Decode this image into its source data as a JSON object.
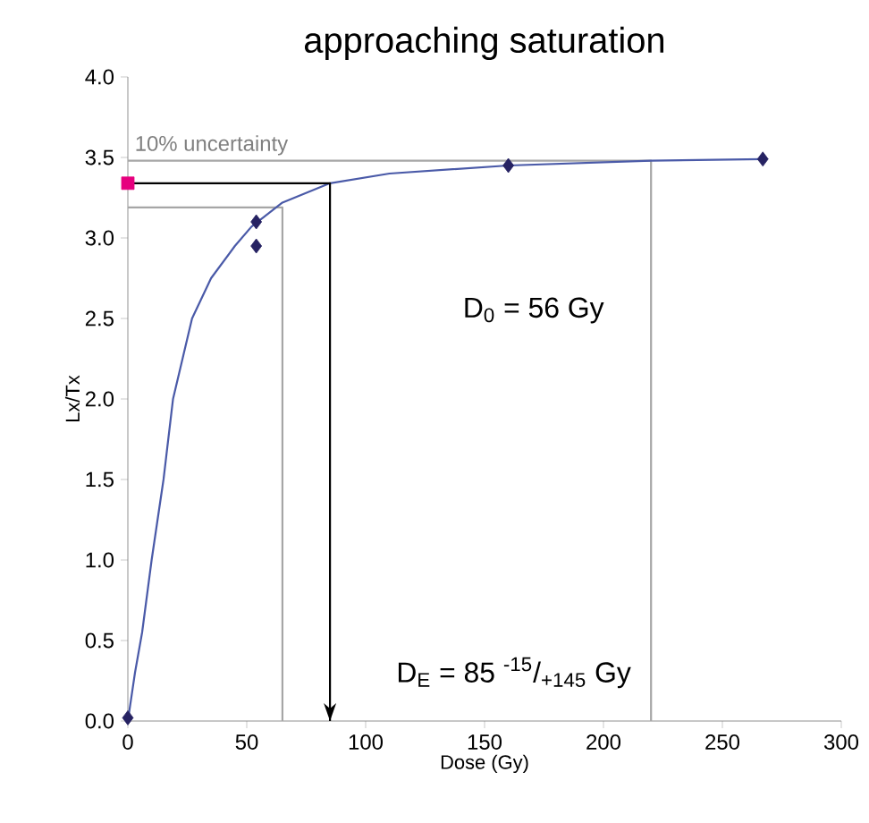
{
  "chart_data": {
    "type": "scatter",
    "title": "approaching saturation",
    "xlabel": "Dose (Gy)",
    "ylabel": "Lx/Tx",
    "xlim": [
      0,
      300
    ],
    "ylim": [
      0,
      4.0
    ],
    "xticks": [
      0,
      50,
      100,
      150,
      200,
      250,
      300
    ],
    "yticks": [
      {
        "value": 0,
        "label": "0.0"
      },
      {
        "value": 0.5,
        "label": "0.5"
      },
      {
        "value": 1,
        "label": "1.0"
      },
      {
        "value": 1.5,
        "label": "1.5"
      },
      {
        "value": 2,
        "label": "2.0"
      },
      {
        "value": 2.5,
        "label": "2.5"
      },
      {
        "value": 3,
        "label": "3.0"
      },
      {
        "value": 3.5,
        "label": "3.5"
      },
      {
        "value": 4,
        "label": "4.0"
      }
    ],
    "grid": false,
    "series": [
      {
        "type": "line",
        "color": "#a6a6a6",
        "marker": "none",
        "x": [
          0,
          220,
          220
        ],
        "values": [
          3.48,
          3.48,
          0
        ]
      },
      {
        "type": "line",
        "color": "#a6a6a6",
        "marker": "none",
        "x": [
          0,
          65,
          65
        ],
        "values": [
          3.19,
          3.19,
          0
        ]
      },
      {
        "type": "line",
        "color": "#4a5aa8",
        "marker": "none",
        "x": [
          0,
          3,
          6,
          10,
          15,
          19,
          27,
          35,
          45,
          52,
          65,
          85,
          110,
          160,
          220,
          267
        ],
        "values": [
          0,
          0.3,
          0.55,
          1.0,
          1.5,
          2.0,
          2.5,
          2.75,
          2.95,
          3.07,
          3.22,
          3.34,
          3.4,
          3.45,
          3.48,
          3.49
        ]
      },
      {
        "type": "line",
        "color": "#000000",
        "marker": "none",
        "x": [
          0,
          85,
          85
        ],
        "values": [
          3.34,
          3.34,
          0
        ]
      },
      {
        "color": "#262262",
        "marker": "diamond",
        "x": [
          0,
          54,
          54,
          160,
          267
        ],
        "values": [
          0.02,
          3.1,
          2.95,
          3.45,
          3.49
        ]
      },
      {
        "color": "#e6007e",
        "marker": "square",
        "x": [
          0
        ],
        "values": [
          3.34
        ]
      }
    ],
    "annotations": [
      "10% uncertainty",
      "D$_{0}$ = 56 Gy",
      "D$_{E}$ = 85 $^{-15}$/$_{+145}$ Gy"
    ]
  }
}
